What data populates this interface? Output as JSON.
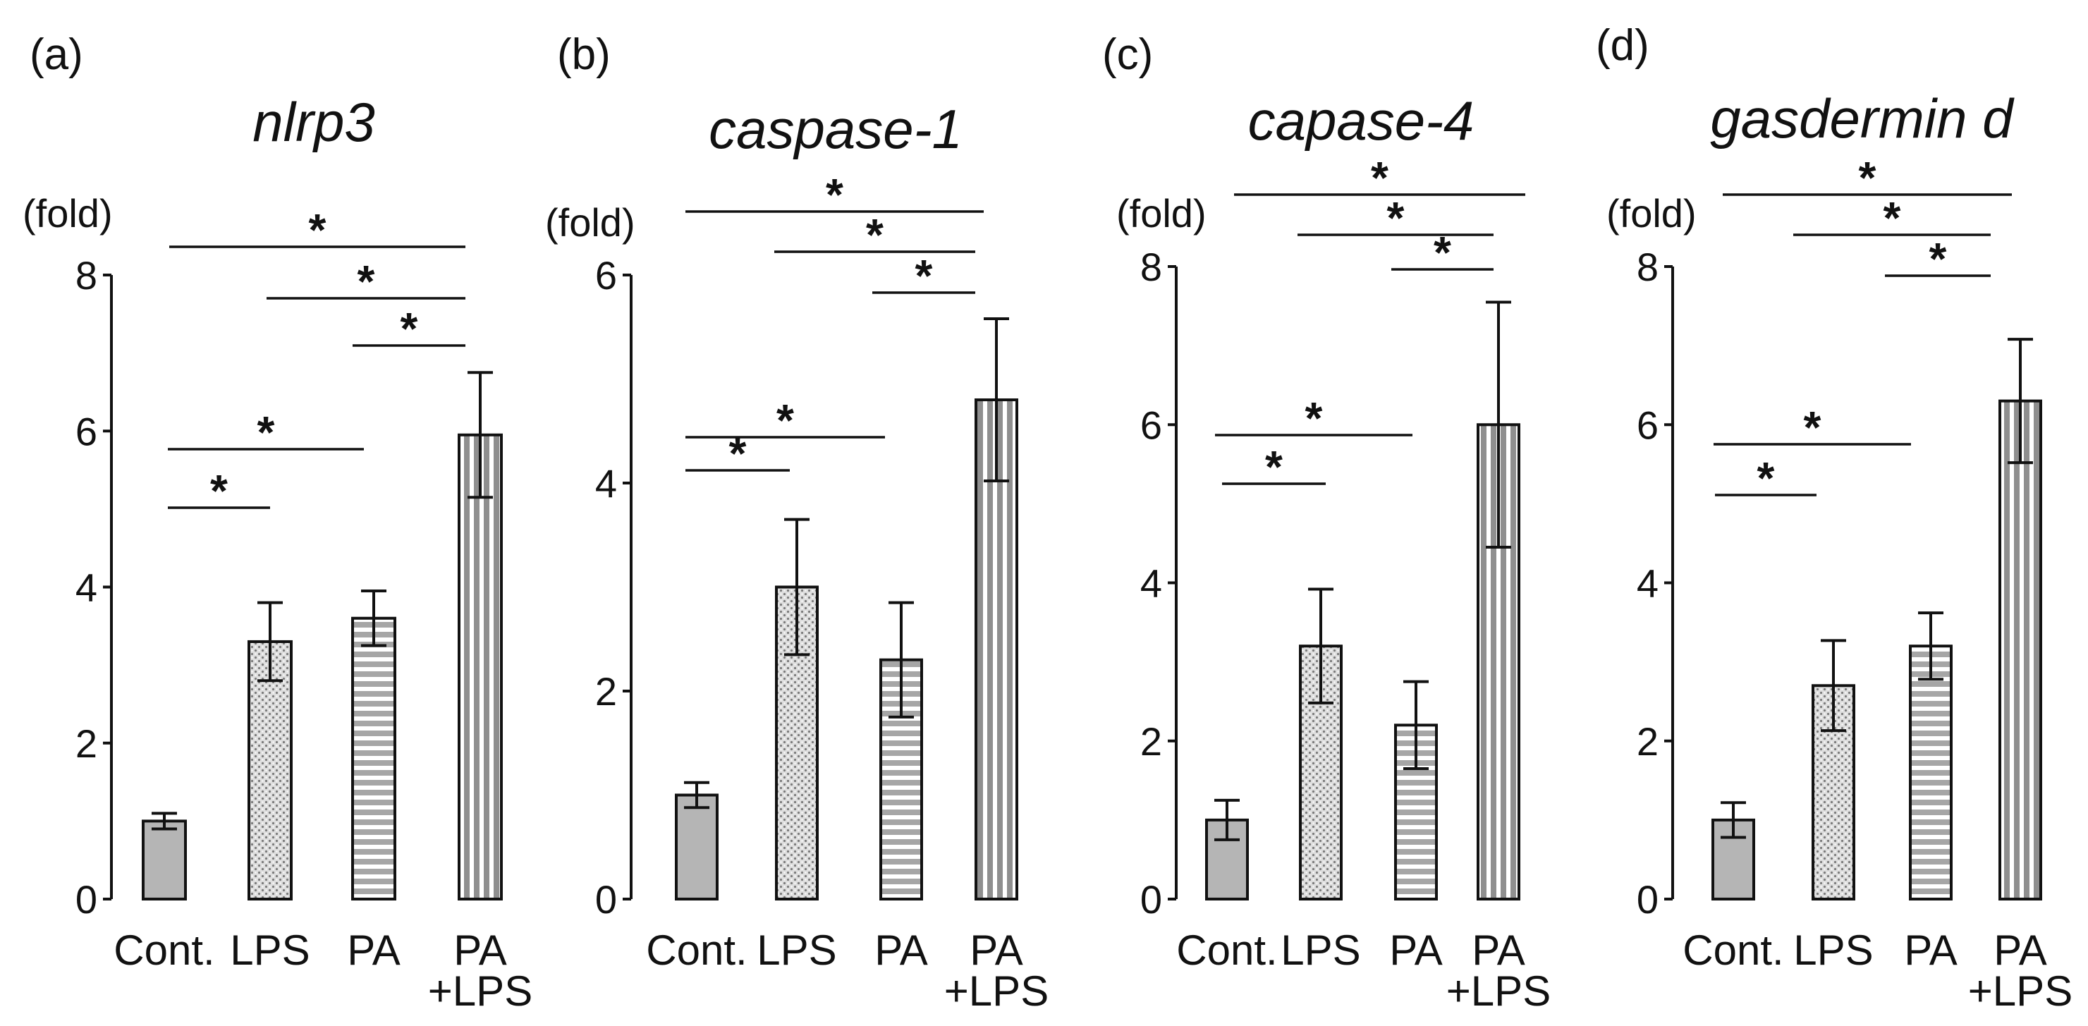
{
  "chart_data": [
    {
      "type": "bar",
      "panel_label": "(a)",
      "title": "nlrp3",
      "ylabel": "(fold)",
      "ylim": [
        0,
        8
      ],
      "yticks": [
        "0",
        "2",
        "4",
        "6",
        "8"
      ],
      "categories": [
        [
          "Cont."
        ],
        [
          "LPS"
        ],
        [
          "PA"
        ],
        [
          "PA",
          "+LPS"
        ]
      ],
      "values": [
        1.0,
        3.3,
        3.6,
        5.95
      ],
      "errors": [
        0.1,
        0.5,
        0.35,
        0.8
      ],
      "significance": [
        {
          "from": 0,
          "to": 1,
          "label": "*"
        },
        {
          "from": 0,
          "to": 2,
          "label": "*"
        },
        {
          "from": 2,
          "to": 3,
          "label": "*"
        },
        {
          "from": 1,
          "to": 3,
          "label": "*"
        },
        {
          "from": 0,
          "to": 3,
          "label": "*"
        }
      ]
    },
    {
      "type": "bar",
      "panel_label": "(b)",
      "title": "caspase-1",
      "ylabel": "(fold)",
      "ylim": [
        0,
        6
      ],
      "yticks": [
        "0",
        "2",
        "4",
        "6"
      ],
      "categories": [
        [
          "Cont."
        ],
        [
          "LPS"
        ],
        [
          "PA"
        ],
        [
          "PA",
          "+LPS"
        ]
      ],
      "values": [
        1.0,
        3.0,
        2.3,
        4.8
      ],
      "errors": [
        0.12,
        0.65,
        0.55,
        0.78
      ],
      "significance": [
        {
          "from": 0,
          "to": 1,
          "label": "*"
        },
        {
          "from": 0,
          "to": 2,
          "label": "*"
        },
        {
          "from": 2,
          "to": 3,
          "label": "*"
        },
        {
          "from": 1,
          "to": 3,
          "label": "*"
        },
        {
          "from": 0,
          "to": 3,
          "label": "*"
        }
      ]
    },
    {
      "type": "bar",
      "panel_label": "(c)",
      "title": "capase-4",
      "ylabel": "(fold)",
      "ylim": [
        0,
        8
      ],
      "yticks": [
        "0",
        "2",
        "4",
        "6",
        "8"
      ],
      "categories": [
        [
          "Cont."
        ],
        [
          "LPS"
        ],
        [
          "PA"
        ],
        [
          "PA",
          "+LPS"
        ]
      ],
      "values": [
        1.0,
        3.2,
        2.2,
        6.0
      ],
      "errors": [
        0.25,
        0.72,
        0.55,
        1.55
      ],
      "significance": [
        {
          "from": 0,
          "to": 1,
          "label": "*"
        },
        {
          "from": 0,
          "to": 2,
          "label": "*"
        },
        {
          "from": 2,
          "to": 3,
          "label": "*"
        },
        {
          "from": 1,
          "to": 3,
          "label": "*"
        },
        {
          "from": 0,
          "to": 3,
          "label": "*"
        }
      ]
    },
    {
      "type": "bar",
      "panel_label": "(d)",
      "title": "gasdermin d",
      "ylabel": "(fold)",
      "ylim": [
        0,
        8
      ],
      "yticks": [
        "0",
        "2",
        "4",
        "6",
        "8"
      ],
      "categories": [
        [
          "Cont."
        ],
        [
          "LPS"
        ],
        [
          "PA"
        ],
        [
          "PA",
          "+LPS"
        ]
      ],
      "values": [
        1.0,
        2.7,
        3.2,
        6.3
      ],
      "errors": [
        0.22,
        0.57,
        0.42,
        0.78
      ],
      "significance": [
        {
          "from": 0,
          "to": 1,
          "label": "*"
        },
        {
          "from": 0,
          "to": 2,
          "label": "*"
        },
        {
          "from": 2,
          "to": 3,
          "label": "*"
        },
        {
          "from": 1,
          "to": 3,
          "label": "*"
        },
        {
          "from": 0,
          "to": 3,
          "label": "*"
        }
      ]
    }
  ],
  "bar_styles": [
    {
      "group": "Cont.",
      "fill": "#b5b5b5",
      "pattern": "solid"
    },
    {
      "group": "LPS",
      "fill": "#dcdcdc",
      "pattern": "crosshatch-dots"
    },
    {
      "group": "PA",
      "fill": "#aaaaaa",
      "pattern": "horizontal-stripes"
    },
    {
      "group": "PA +LPS",
      "fill": "#999999",
      "pattern": "vertical-stripes"
    }
  ]
}
